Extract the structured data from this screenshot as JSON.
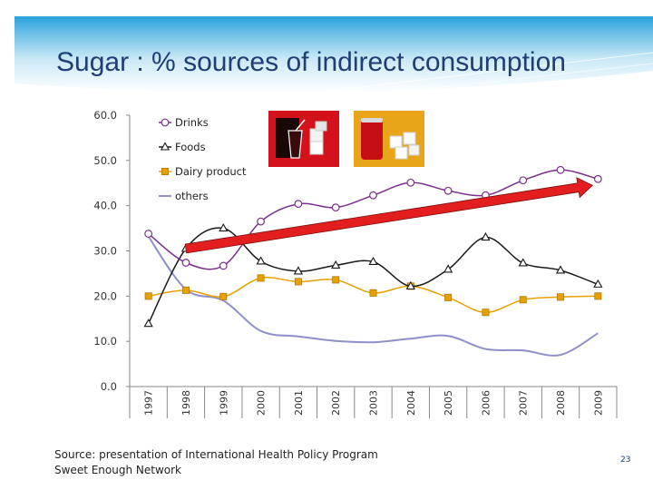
{
  "slide": {
    "title": "Sugar : % sources of indirect consumption",
    "source_line1": "Source: presentation of International Health Policy Program",
    "source_line2": "Sweet Enough Network",
    "page_number": "23",
    "banner_color": "#2aa3dc"
  },
  "chart_data": {
    "type": "line",
    "title": "",
    "xlabel": "",
    "ylabel": "",
    "x": [
      "1997",
      "1998",
      "1999",
      "2000",
      "2001",
      "2002",
      "2003",
      "2004",
      "2005",
      "2006",
      "2007",
      "2008",
      "2009"
    ],
    "ylim": [
      0,
      60
    ],
    "yticks": [
      "0.0",
      "10.0",
      "20.0",
      "30.0",
      "40.0",
      "50.0",
      "60.0"
    ],
    "grid": false,
    "legend_position": "top-left",
    "series": [
      {
        "name": "Drinks",
        "color": "#7b2f8e",
        "marker": "circle",
        "values": [
          33.8,
          27.4,
          26.7,
          36.5,
          40.4,
          39.6,
          42.3,
          45.1,
          43.3,
          42.3,
          45.6,
          47.9,
          45.9
        ]
      },
      {
        "name": "Foods",
        "color": "#1a1a1a",
        "marker": "triangle",
        "values": [
          13.9,
          30.5,
          35.0,
          27.7,
          25.5,
          26.8,
          27.6,
          22.2,
          25.9,
          33.0,
          27.3,
          25.7,
          22.6
        ]
      },
      {
        "name": "Dairy product",
        "color": "#e8a000",
        "marker": "square",
        "values": [
          20.0,
          21.3,
          19.9,
          24.0,
          23.2,
          23.6,
          20.7,
          22.2,
          19.7,
          16.4,
          19.2,
          19.8,
          20.0
        ]
      },
      {
        "name": "others",
        "color": "#8f8fc9",
        "marker": "none",
        "values": [
          33.2,
          21.5,
          19.0,
          12.3,
          11.1,
          10.1,
          9.8,
          10.6,
          11.2,
          8.3,
          8.0,
          7.0,
          11.8
        ]
      }
    ],
    "trend_arrow": {
      "color": "#e21e1e",
      "from": {
        "x": "1998",
        "y": 30.5
      },
      "to": {
        "x": "2009",
        "y": 44.5
      }
    }
  }
}
